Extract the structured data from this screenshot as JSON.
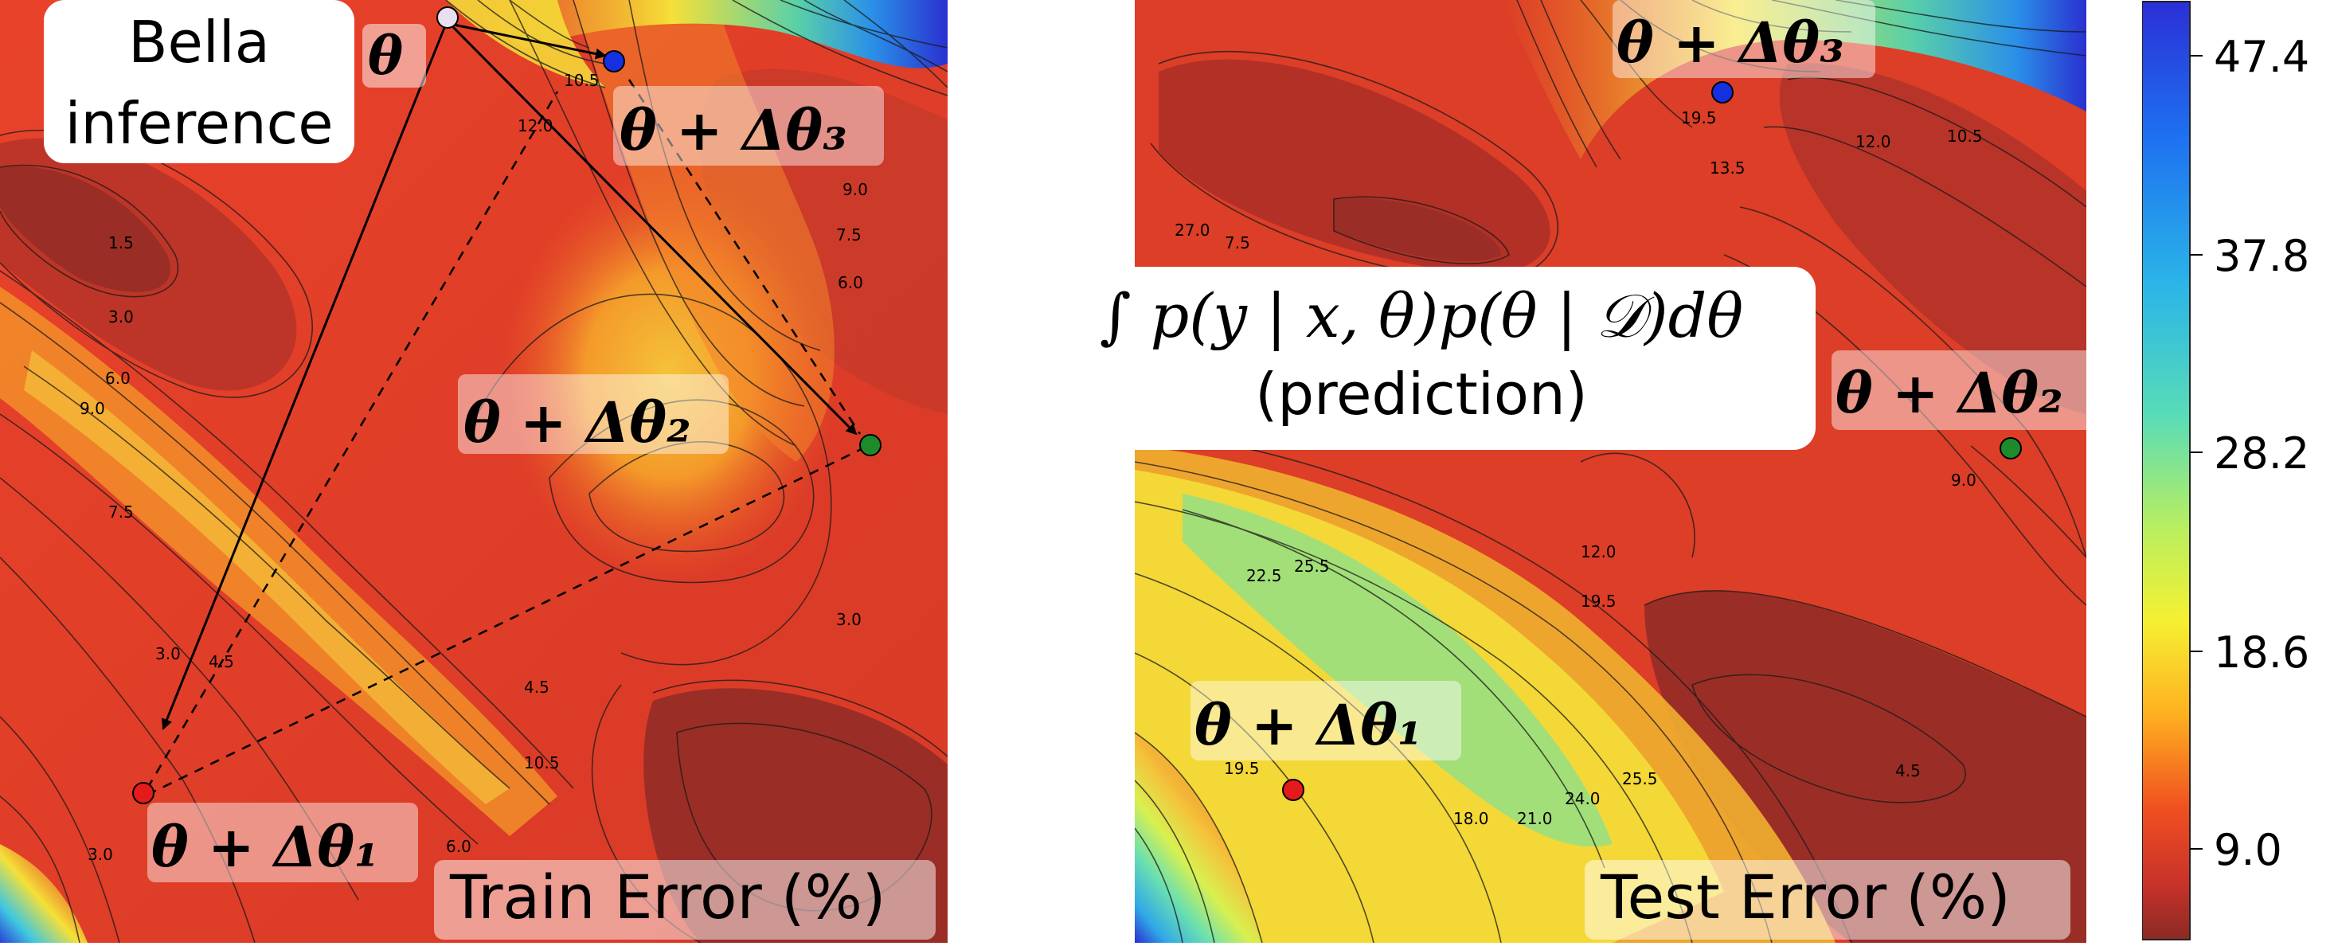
{
  "left_panel": {
    "title": "Train Error (%)",
    "callout": [
      "Bella",
      "inference"
    ],
    "theta": "θ",
    "points": {
      "p0": "θ",
      "p1": "θ + Δθ₁",
      "p2": "θ + Δθ₂",
      "p3": "θ + Δθ₃"
    },
    "point_colors": {
      "p0": "#e8e0f0",
      "p1": "#e41a1c",
      "p2": "#1f8a2a",
      "p3": "#1530e0"
    },
    "contour_labels": [
      "1.5",
      "3.0",
      "6.0",
      "9.0",
      "7.5",
      "3.0",
      "4.5",
      "10.5",
      "12.0",
      "9.0",
      "7.5",
      "6.0",
      "3.0",
      "4.5",
      "10.5",
      "6.0",
      "3.0"
    ]
  },
  "right_panel": {
    "title": "Test Error (%)",
    "formula": "∫ p(y | x, θ)p(θ | 𝒟)dθ",
    "formula_caption": "(prediction)",
    "points": {
      "p1": "θ + Δθ₁",
      "p2": "θ + Δθ₂",
      "p3": "θ + Δθ₃"
    },
    "contour_labels": [
      "27.0",
      "7.5",
      "12.0",
      "10.5",
      "13.5",
      "19.5",
      "22.5",
      "25.5",
      "12.0",
      "19.5",
      "18.0",
      "21.0",
      "24.0",
      "25.5",
      "4.5",
      "19.5",
      "9.0"
    ]
  },
  "colorbar": {
    "ticks": [
      "47.4",
      "37.8",
      "28.2",
      "18.6",
      "9.0"
    ],
    "colors": [
      "#2b2fd6",
      "#1e90ff",
      "#30d5c8",
      "#9af060",
      "#f5f032",
      "#ffb020",
      "#f05020",
      "#b82f2a",
      "#8b2a25"
    ]
  }
}
